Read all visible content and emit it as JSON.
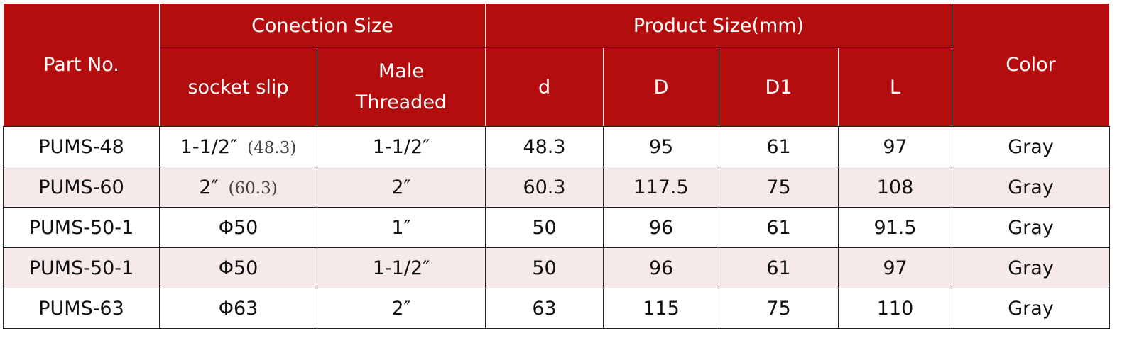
{
  "header": {
    "part_no": "Part No.",
    "connection_size": "Conection Size",
    "product_size": "Product Size(mm)",
    "color": "Color",
    "sub": [
      "socket slip",
      "Male Threaded",
      "d",
      "D",
      "D1",
      "L"
    ]
  },
  "table": {
    "rows": [
      [
        "PUMS-48",
        {
          "size": "1-1/2″",
          "mm": "(48.3)"
        },
        "1-1/2″",
        "48.3",
        "95",
        "61",
        "97",
        "Gray"
      ],
      [
        "PUMS-60",
        {
          "size": "2″",
          "mm": "(60.3)"
        },
        "2″",
        "60.3",
        "117.5",
        "75",
        "108",
        "Gray"
      ],
      [
        "PUMS-50-1",
        "Φ50",
        "1″",
        "50",
        "96",
        "61",
        "91.5",
        "Gray"
      ],
      [
        "PUMS-50-1",
        "Φ50",
        "1-1/2″",
        "50",
        "96",
        "61",
        "97",
        "Gray"
      ],
      [
        "PUMS-63",
        "Φ63",
        "2″",
        "63",
        "115",
        "75",
        "110",
        "Gray"
      ]
    ]
  }
}
